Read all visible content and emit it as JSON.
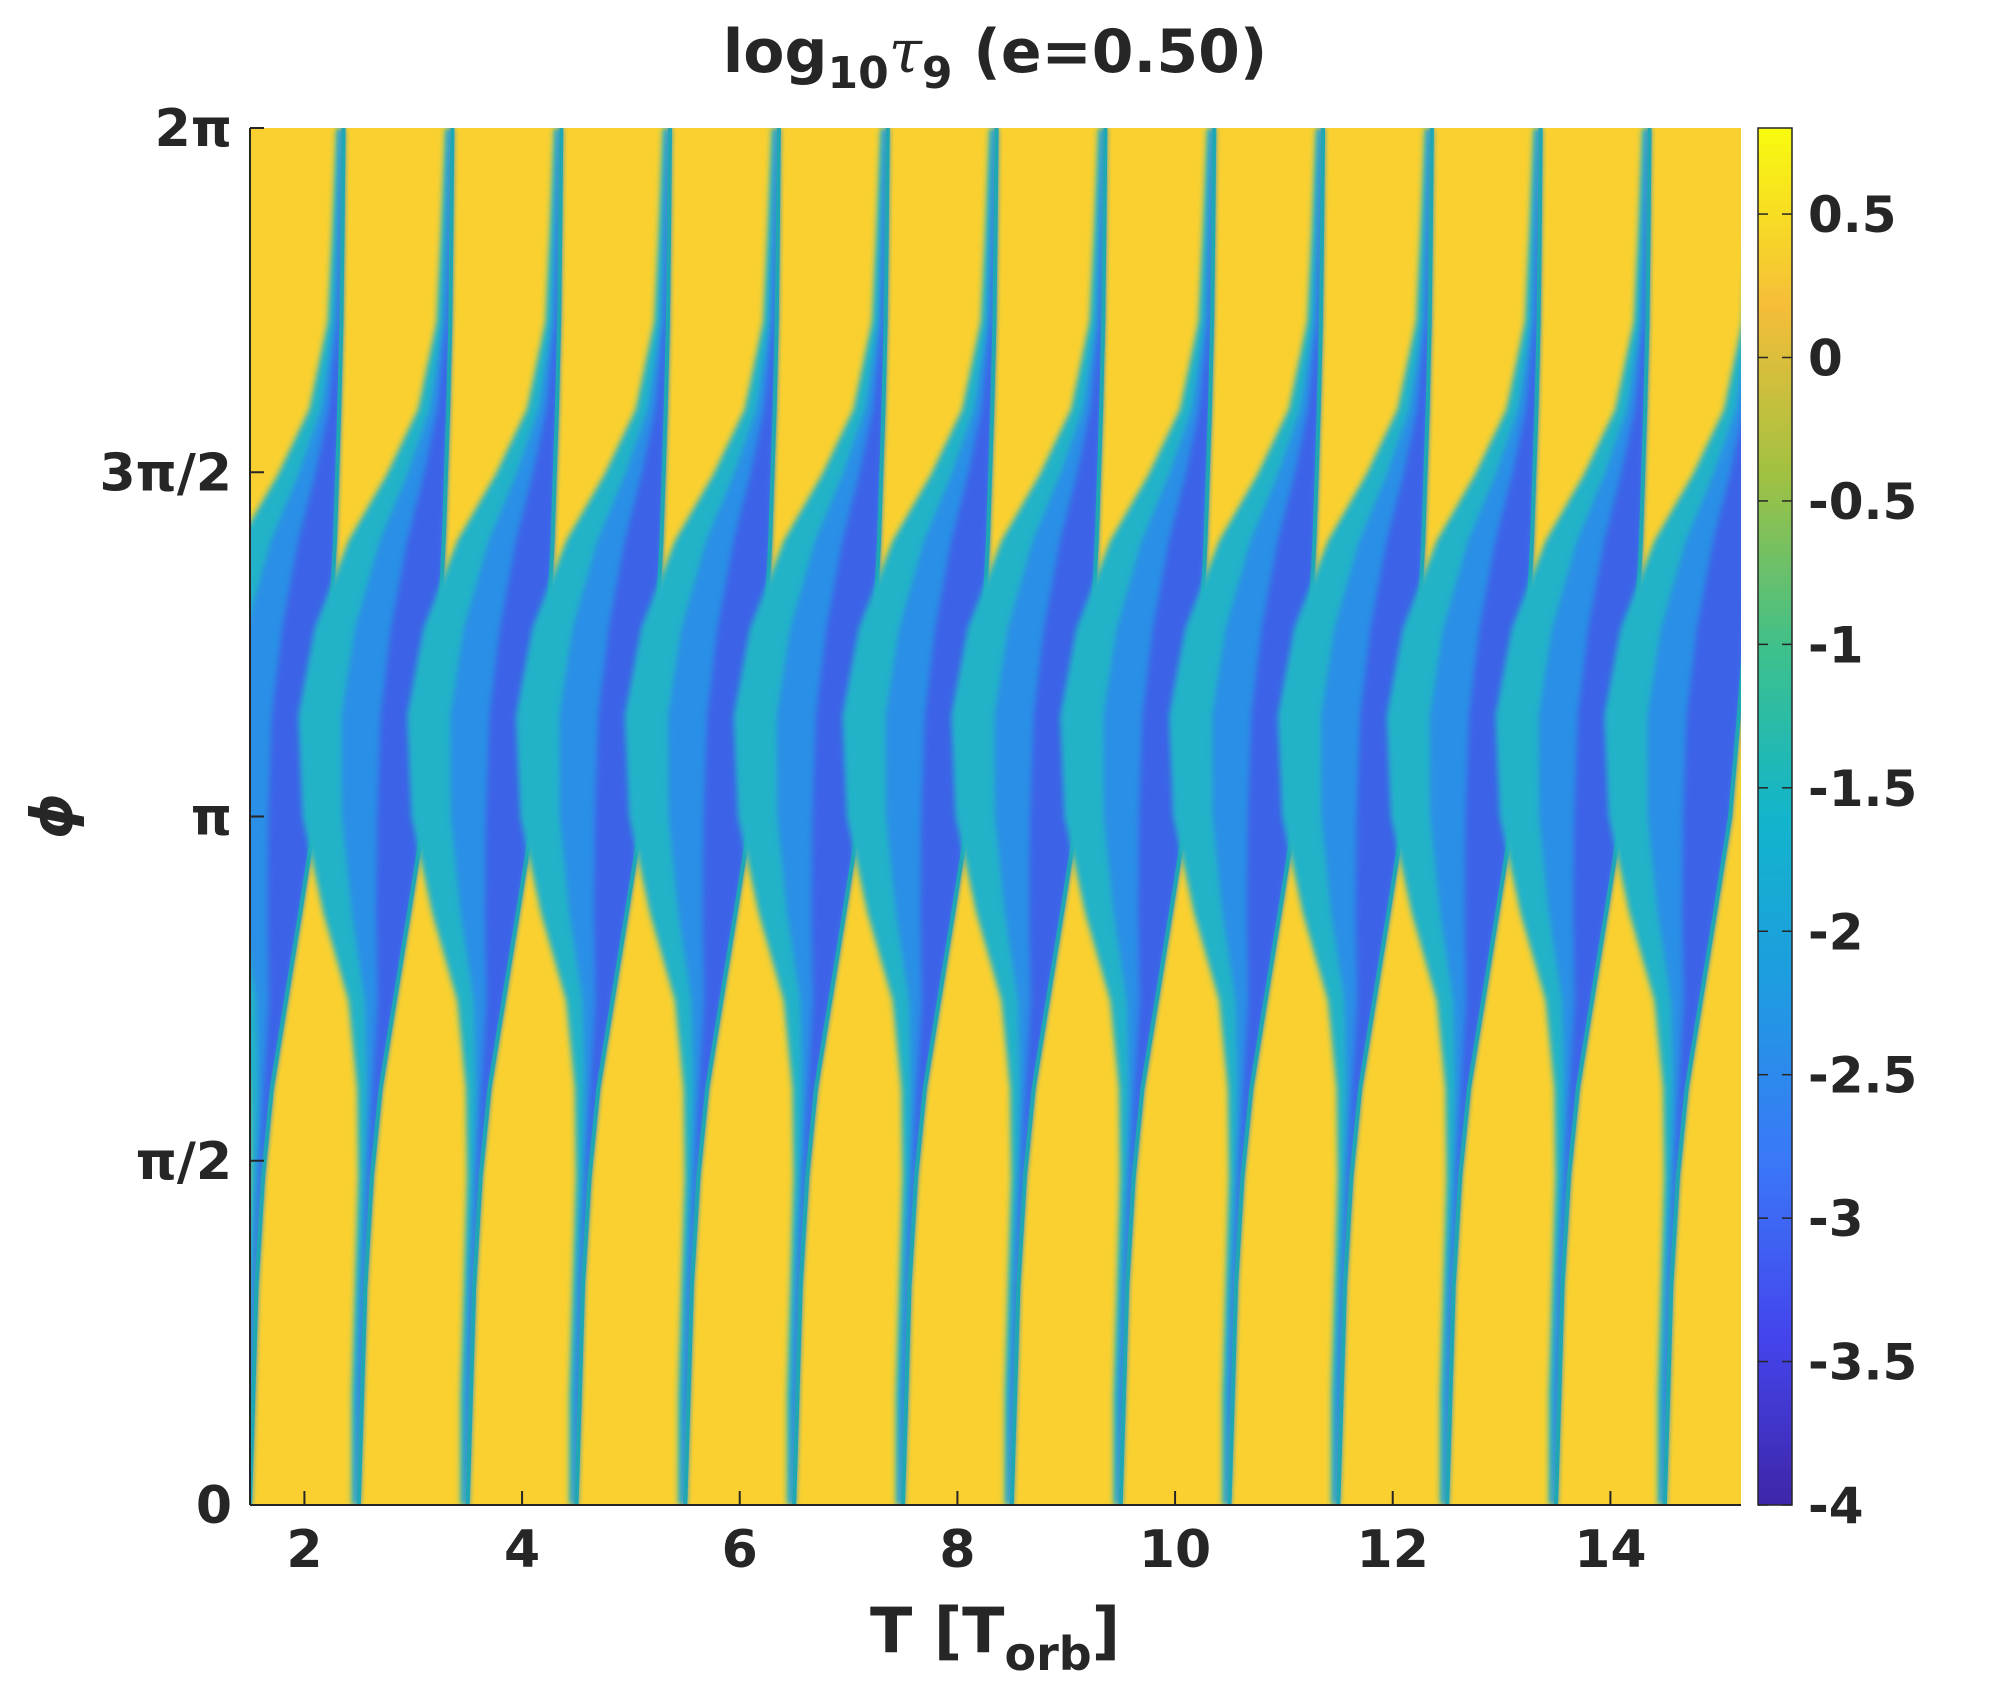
{
  "chart_data": {
    "type": "heatmap",
    "title": {
      "base": "log",
      "sub1": "10",
      "sym": "τ",
      "sub2": "9",
      "rest": " (e=0.50)"
    },
    "xlabel": {
      "base": "T [T",
      "sub": "orb",
      "rest": "]"
    },
    "ylabel": "ϕ",
    "xlim": [
      1.5,
      15.2
    ],
    "ylim": [
      0,
      6.2832
    ],
    "x_ticks": [
      {
        "value": 2,
        "label": "2"
      },
      {
        "value": 4,
        "label": "4"
      },
      {
        "value": 6,
        "label": "6"
      },
      {
        "value": 8,
        "label": "8"
      },
      {
        "value": 10,
        "label": "10"
      },
      {
        "value": 12,
        "label": "12"
      },
      {
        "value": 14,
        "label": "14"
      }
    ],
    "y_ticks": [
      {
        "value": 0,
        "label": "0"
      },
      {
        "value": 1.5708,
        "label": "π/2"
      },
      {
        "value": 3.1416,
        "label": "π"
      },
      {
        "value": 4.7124,
        "label": "3π/2"
      },
      {
        "value": 6.2832,
        "label": "2π"
      }
    ],
    "colorbar": {
      "range": [
        -4,
        0.8
      ],
      "ticks": [
        {
          "value": 0.5,
          "label": "0.5"
        },
        {
          "value": 0,
          "label": "0"
        },
        {
          "value": -0.5,
          "label": "-0.5"
        },
        {
          "value": -1,
          "label": "-1"
        },
        {
          "value": -1.5,
          "label": "-1.5"
        },
        {
          "value": -2,
          "label": "-2"
        },
        {
          "value": -2.5,
          "label": "-2.5"
        },
        {
          "value": -3,
          "label": "-3"
        },
        {
          "value": -3.5,
          "label": "-3.5"
        },
        {
          "value": -4,
          "label": "-4"
        }
      ],
      "colormap": "parula"
    },
    "background_value": 0.3,
    "band_min_value": -3.6,
    "stripes": [
      {
        "phase_start": 1.5
      },
      {
        "phase_start": 2.5
      },
      {
        "phase_start": 3.5
      },
      {
        "phase_start": 4.5
      },
      {
        "phase_start": 5.5
      },
      {
        "phase_start": 6.5
      },
      {
        "phase_start": 7.5
      },
      {
        "phase_start": 8.5
      },
      {
        "phase_start": 9.5
      },
      {
        "phase_start": 10.5
      },
      {
        "phase_start": 11.5
      },
      {
        "phase_start": 12.5
      },
      {
        "phase_start": 13.5
      },
      {
        "phase_start": 14.5
      }
    ],
    "stripe_shape_phi": [
      0,
      0.5,
      1.0,
      1.5,
      1.9,
      2.3,
      2.7,
      3.14,
      3.6,
      4.0,
      4.4,
      4.7,
      5.0,
      5.4,
      5.8,
      6.2832
    ],
    "stripe_shape_dt": [
      0.0,
      0.03,
      0.06,
      0.12,
      0.2,
      0.33,
      0.46,
      0.6,
      0.68,
      0.74,
      0.78,
      0.8,
      0.82,
      0.84,
      0.85,
      0.86
    ],
    "band_width_phi": [
      0.01,
      0.02,
      0.02,
      0.03,
      0.06,
      0.13,
      0.25,
      0.36,
      0.4,
      0.37,
      0.28,
      0.17,
      0.08,
      0.03,
      0.02,
      0.01
    ]
  }
}
